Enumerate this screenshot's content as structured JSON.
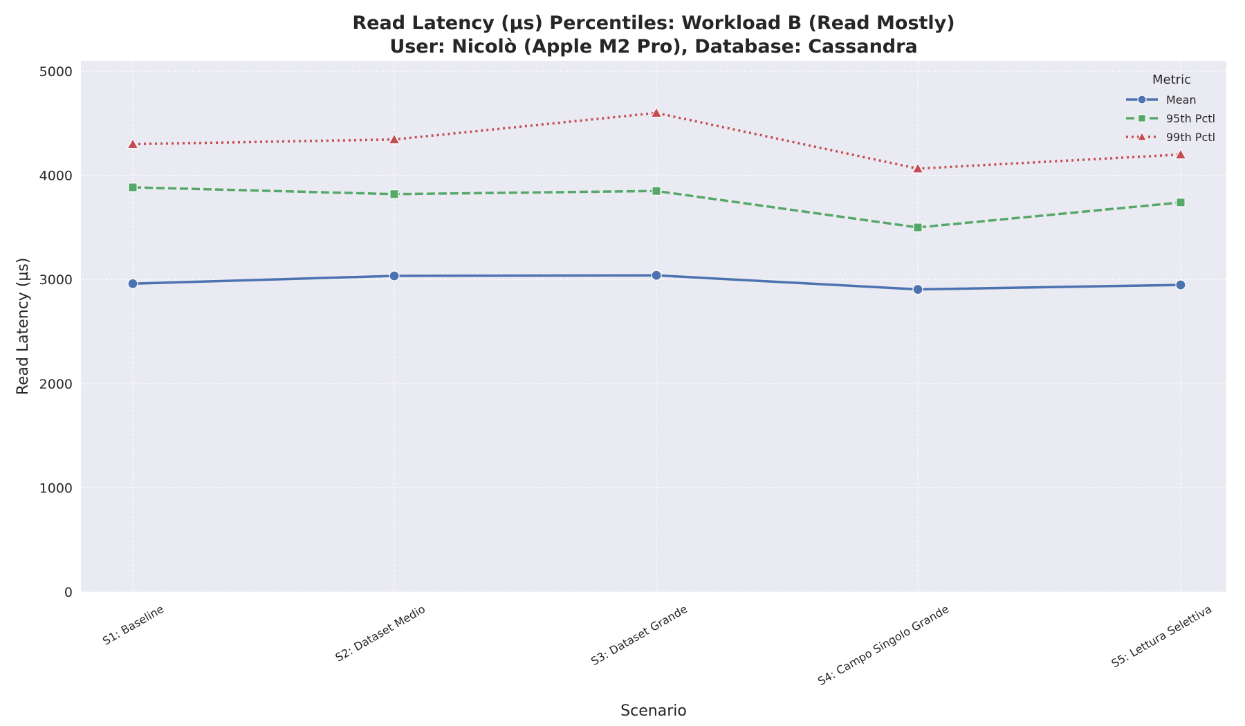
{
  "chart_data": {
    "type": "line",
    "title": "Read Latency (µs) Percentiles: Workload B (Read Mostly)",
    "subtitle": "User: Nicolò (Apple M2 Pro), Database: Cassandra",
    "xlabel": "Scenario",
    "ylabel": "Read Latency (µs)",
    "categories": [
      "S1: Baseline",
      "S2: Dataset Medio",
      "S3: Dataset Grande",
      "S4: Campo Singolo Grande",
      "S5: Lettura Selettiva"
    ],
    "ylim": [
      0,
      5100
    ],
    "yticks": [
      0,
      1000,
      2000,
      3000,
      4000,
      5000
    ],
    "grid": true,
    "legend": {
      "title": "Metric",
      "placement": "top-right"
    },
    "series": [
      {
        "name": "Mean",
        "values": [
          2960,
          3035,
          3040,
          2905,
          2948
        ],
        "color": "#4c72b0",
        "marker": "circle",
        "dash": "solid"
      },
      {
        "name": "95th Pctl",
        "values": [
          3885,
          3820,
          3850,
          3500,
          3740
        ],
        "color": "#55a868",
        "marker": "square",
        "dash": "dashed"
      },
      {
        "name": "99th Pctl",
        "values": [
          4300,
          4345,
          4600,
          4065,
          4200
        ],
        "color": "#c44e52",
        "marker": "triangle",
        "dash": "dotted"
      }
    ]
  }
}
